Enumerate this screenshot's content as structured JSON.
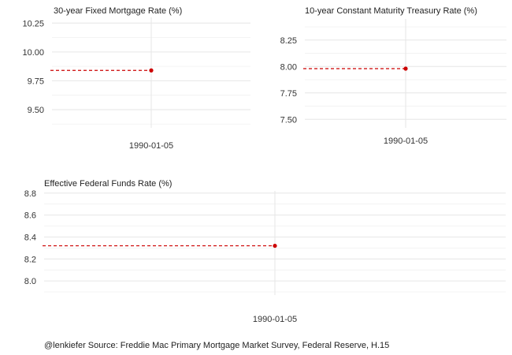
{
  "caption": "@lenkiefer Source: Freddie Mac Primary Mortgage Market Survey, Federal Reserve, H.15",
  "colors": {
    "point": "#cc0000",
    "dash": "#cc0000",
    "grid": "#e6e6e6",
    "text": "#333333"
  },
  "chart_data": [
    {
      "type": "scatter",
      "title": "30-year Fixed Mortgage Rate (%)",
      "xlabel": "",
      "ylabel": "",
      "x": [
        "1990-01-05"
      ],
      "y": [
        9.84
      ],
      "ylim": [
        9.37,
        10.3
      ],
      "yticks": [
        9.5,
        9.75,
        10.0,
        10.25
      ],
      "ytick_labels": [
        "9.50",
        "9.75",
        "10.00",
        "10.25"
      ],
      "xticks": [
        "1990-01-05"
      ],
      "reference_line": "dashed horizontal line at the point value",
      "grid": true
    },
    {
      "type": "scatter",
      "title": "10-year Constant Maturity Treasury Rate (%)",
      "xlabel": "",
      "ylabel": "",
      "x": [
        "1990-01-05"
      ],
      "y": [
        7.98
      ],
      "ylim": [
        7.45,
        8.45
      ],
      "yticks": [
        7.5,
        7.75,
        8.0,
        8.25
      ],
      "ytick_labels": [
        "7.50",
        "7.75",
        "8.00",
        "8.25"
      ],
      "xticks": [
        "1990-01-05"
      ],
      "reference_line": "dashed horizontal line at the point value",
      "grid": true
    },
    {
      "type": "scatter",
      "title": "Effective Federal Funds Rate (%)",
      "xlabel": "",
      "ylabel": "",
      "x": [
        "1990-01-05"
      ],
      "y": [
        8.32
      ],
      "ylim": [
        7.9,
        8.82
      ],
      "yticks": [
        8.0,
        8.2,
        8.4,
        8.6,
        8.8
      ],
      "ytick_labels": [
        "8.0",
        "8.2",
        "8.4",
        "8.6",
        "8.8"
      ],
      "xticks": [
        "1990-01-05"
      ],
      "reference_line": "dashed horizontal line at the point value",
      "grid": true
    }
  ]
}
